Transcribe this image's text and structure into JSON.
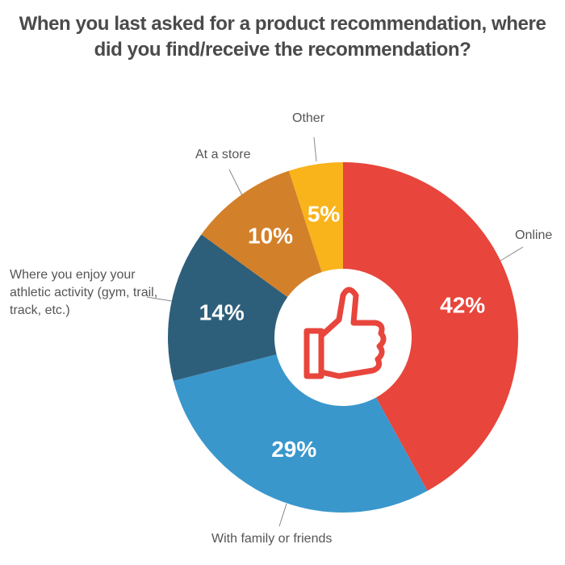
{
  "chart_data": {
    "type": "pie",
    "title": "When you last asked for a product recommendation, where did you find/receive the recommendation?",
    "categories": [
      "Online",
      "With family or friends",
      "Where you enjoy your athletic activity (gym, trail, track, etc.)",
      "At a store",
      "Other"
    ],
    "values": [
      42,
      29,
      14,
      10,
      5
    ],
    "value_labels": [
      "42%",
      "29%",
      "14%",
      "10%",
      "5%"
    ],
    "colors": [
      "#e8453c",
      "#3a97cc",
      "#2e5f7a",
      "#d3802a",
      "#f9b31b"
    ]
  }
}
